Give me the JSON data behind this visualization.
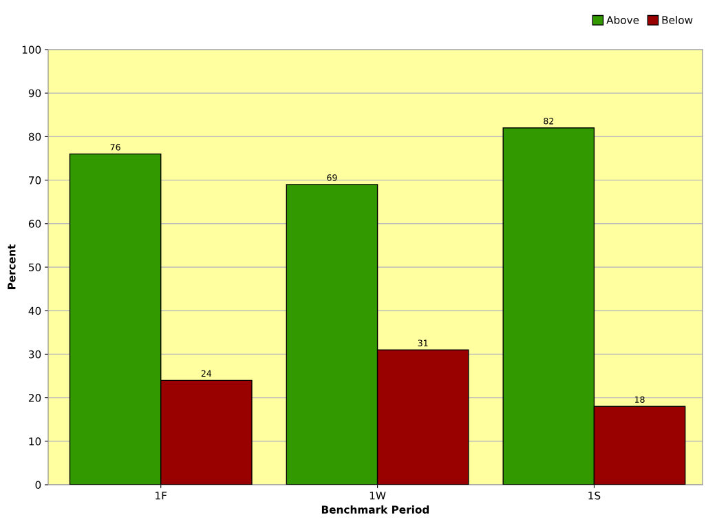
{
  "chart_data": {
    "type": "bar",
    "xlabel": "Benchmark Period",
    "ylabel": "Percent",
    "categories": [
      "1F",
      "1W",
      "1S"
    ],
    "series": [
      {
        "name": "Above",
        "color": "#339900",
        "values": [
          76,
          69,
          82
        ]
      },
      {
        "name": "Below",
        "color": "#990000",
        "values": [
          24,
          31,
          18
        ]
      }
    ],
    "ylim": [
      0,
      100
    ],
    "yticks": [
      0,
      10,
      20,
      30,
      40,
      50,
      60,
      70,
      80,
      90,
      100
    ],
    "grid": "y",
    "legend": "top right",
    "data_labels": true
  }
}
